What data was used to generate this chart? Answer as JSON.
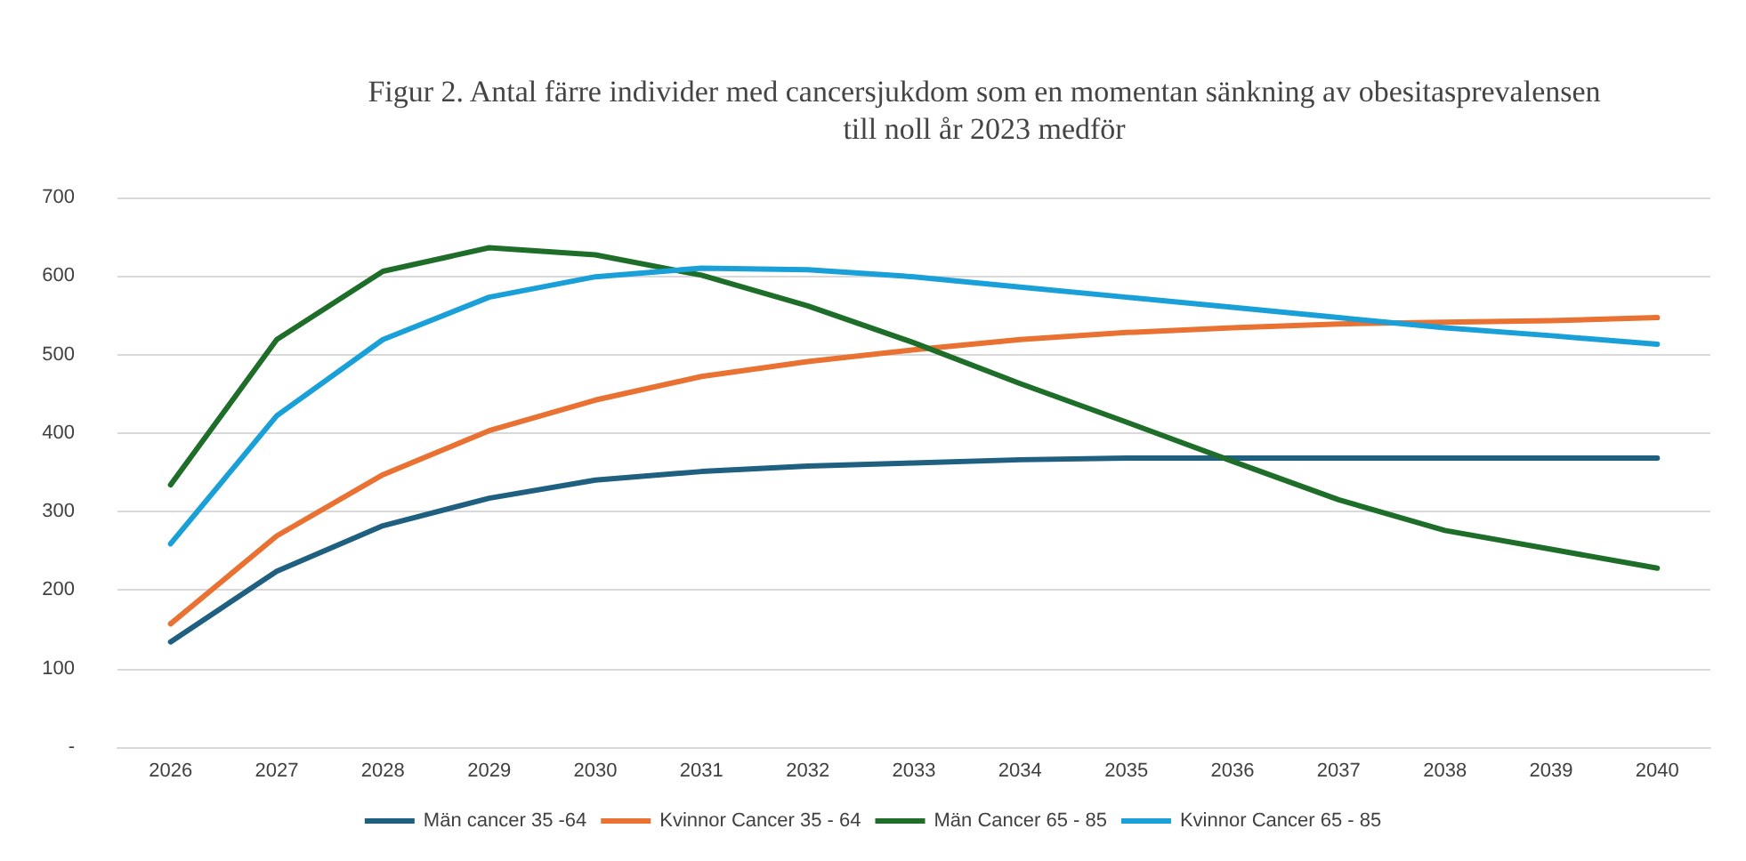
{
  "chart_data": {
    "type": "line",
    "title": "Figur 2. Antal färre individer med cancersjukdom som en momentan sänkning av obesitasprevalensen\ntill noll år 2023 medför",
    "categories": [
      "2026",
      "2027",
      "2028",
      "2029",
      "2030",
      "2031",
      "2032",
      "2033",
      "2034",
      "2035",
      "2036",
      "2037",
      "2038",
      "2039",
      "2040"
    ],
    "series": [
      {
        "name": "Män cancer 35 -64",
        "color": "#1f5f80",
        "values": [
          134,
          224,
          282,
          317,
          340,
          351,
          358,
          362,
          366,
          368,
          368,
          368,
          368,
          368,
          368
        ]
      },
      {
        "name": "Kvinnor Cancer 35 - 64",
        "color": "#e97132",
        "values": [
          157,
          269,
          347,
          403,
          442,
          472,
          491,
          506,
          519,
          528,
          534,
          539,
          541,
          543,
          547
        ]
      },
      {
        "name": "Män Cancer 65 - 85",
        "color": "#1e6e2a",
        "values": [
          334,
          519,
          606,
          636,
          627,
          601,
          562,
          515,
          463,
          414,
          364,
          315,
          276,
          252,
          228
        ]
      },
      {
        "name": "Kvinnor Cancer 65 - 85",
        "color": "#1aa0d8",
        "values": [
          259,
          422,
          519,
          573,
          599,
          610,
          608,
          599,
          586,
          573,
          560,
          547,
          534,
          524,
          513
        ]
      }
    ],
    "ylim": [
      0,
      700
    ],
    "yticks": [
      {
        "value": 0,
        "label": "-"
      },
      100,
      200,
      300,
      400,
      500,
      600,
      700
    ],
    "grid": "y",
    "legend": "bottom",
    "marker": "none",
    "line_style": "solid"
  }
}
